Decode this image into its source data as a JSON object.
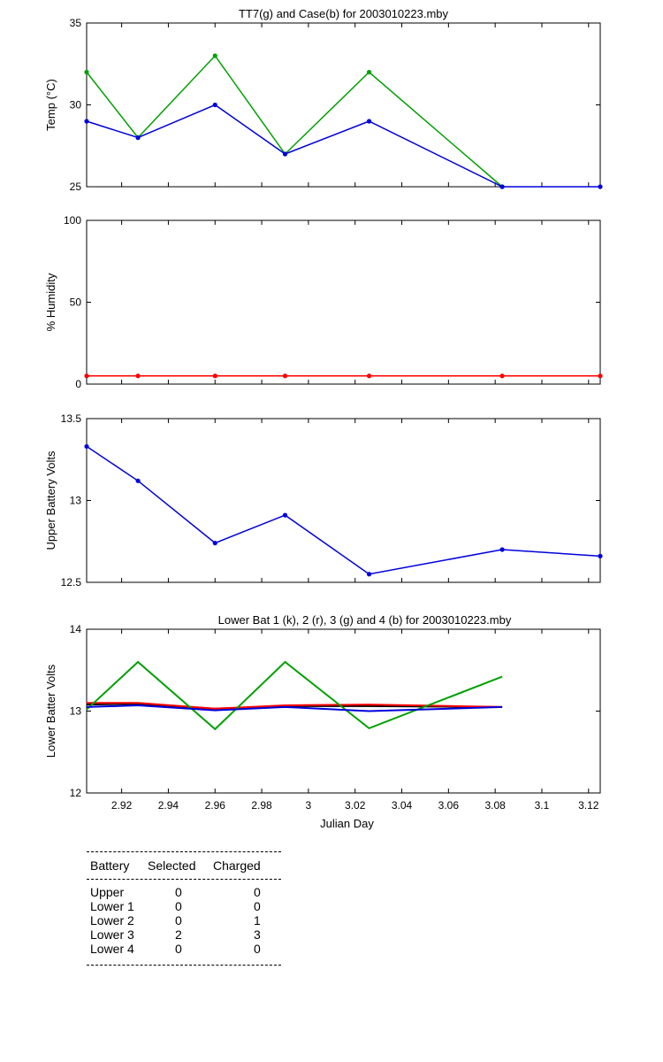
{
  "x_axis": {
    "label": "Julian Day",
    "range": [
      2.905,
      3.125
    ],
    "ticks": [
      2.92,
      2.94,
      2.96,
      2.98,
      3.0,
      3.02,
      3.04,
      3.06,
      3.08,
      3.1,
      3.12
    ],
    "tick_labels": [
      "2.92",
      "2.94",
      "2.96",
      "2.98",
      "3",
      "3.02",
      "3.04",
      "3.06",
      "3.08",
      "3.1",
      "3.12"
    ]
  },
  "chart_data": [
    {
      "type": "line",
      "title": "TT7(g) and Case(b) for 2003010223.mby",
      "ylabel": "Temp  (°C)",
      "xlabel": "",
      "ylim": [
        25,
        35
      ],
      "yticks": [
        25,
        30,
        35
      ],
      "ytick_labels": [
        "25",
        "30",
        "35"
      ],
      "markers": true,
      "series": [
        {
          "name": "TT7",
          "color": "#00a000",
          "x": [
            2.905,
            2.927,
            2.96,
            2.99,
            3.026,
            3.083
          ],
          "y": [
            32,
            28,
            33,
            27,
            32,
            25
          ]
        },
        {
          "name": "Case",
          "color": "#0000dd",
          "x": [
            2.905,
            2.927,
            2.96,
            2.99,
            3.026,
            3.083,
            3.125
          ],
          "y": [
            29,
            28,
            30,
            27,
            29,
            25,
            25
          ]
        }
      ]
    },
    {
      "type": "line",
      "title": "",
      "ylabel": "% Humidity",
      "xlabel": "",
      "ylim": [
        0,
        100
      ],
      "yticks": [
        0,
        50,
        100
      ],
      "ytick_labels": [
        "0",
        "50",
        "100"
      ],
      "markers": true,
      "series": [
        {
          "color": "#ff0000",
          "x": [
            2.905,
            2.927,
            2.96,
            2.99,
            3.026,
            3.083,
            3.125
          ],
          "y": [
            5,
            5,
            5,
            5,
            5,
            5,
            5
          ]
        }
      ]
    },
    {
      "type": "line",
      "title": "",
      "ylabel": "Upper Battery Volts",
      "xlabel": "",
      "ylim": [
        12.5,
        13.5
      ],
      "yticks": [
        12.5,
        13,
        13.5
      ],
      "ytick_labels": [
        "12.5",
        "13",
        "13.5"
      ],
      "markers": true,
      "series": [
        {
          "color": "#0000dd",
          "x": [
            2.905,
            2.927,
            2.96,
            2.99,
            3.026,
            3.083,
            3.125
          ],
          "y": [
            13.33,
            13.12,
            12.74,
            12.91,
            12.55,
            12.7,
            12.66
          ]
        }
      ]
    },
    {
      "type": "line",
      "title": "Lower Bat 1 (k), 2 (r), 3 (g) and 4 (b) for 2003010223.mby",
      "ylabel": "Lower Batter Volts",
      "xlabel": "Julian Day",
      "ylim": [
        12,
        14
      ],
      "yticks": [
        12,
        13,
        14
      ],
      "ytick_labels": [
        "12",
        "13",
        "14"
      ],
      "markers": false,
      "series": [
        {
          "name": "1",
          "color": "#000000",
          "x": [
            2.905,
            2.927,
            2.96,
            2.99,
            3.026,
            3.083
          ],
          "y": [
            13.08,
            13.09,
            13.03,
            13.06,
            13.06,
            13.05
          ]
        },
        {
          "name": "2",
          "color": "#ff0000",
          "x": [
            2.905,
            2.927,
            2.96,
            2.99,
            3.026,
            3.083
          ],
          "y": [
            13.1,
            13.1,
            13.03,
            13.07,
            13.08,
            13.05
          ]
        },
        {
          "name": "3",
          "color": "#00a000",
          "x": [
            2.905,
            2.927,
            2.96,
            2.99,
            3.026,
            3.083
          ],
          "y": [
            13.02,
            13.6,
            12.78,
            13.6,
            12.79,
            13.42
          ]
        },
        {
          "name": "4",
          "color": "#0000dd",
          "x": [
            2.905,
            2.927,
            2.96,
            2.99,
            3.026,
            3.083
          ],
          "y": [
            13.05,
            13.07,
            13.01,
            13.05,
            13.0,
            13.05
          ]
        }
      ]
    }
  ],
  "table": {
    "headers": [
      "Battery",
      "Selected",
      "Charged"
    ],
    "rows": [
      {
        "battery": "Upper",
        "selected": "0",
        "charged": "0"
      },
      {
        "battery": "Lower 1",
        "selected": "0",
        "charged": "0"
      },
      {
        "battery": "Lower 2",
        "selected": "0",
        "charged": "1"
      },
      {
        "battery": "Lower 3",
        "selected": "2",
        "charged": "3"
      },
      {
        "battery": "Lower 4",
        "selected": "0",
        "charged": "0"
      }
    ]
  }
}
